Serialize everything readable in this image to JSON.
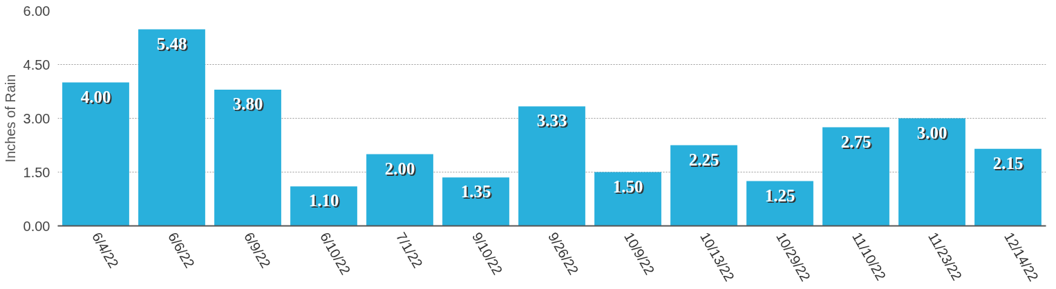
{
  "chart_data": {
    "type": "bar",
    "ylabel": "Inches of Rain",
    "categories": [
      "6/4/22",
      "6/6/22",
      "6/9/22",
      "6/10/22",
      "7/1/22",
      "9/10/22",
      "9/26/22",
      "10/9/22",
      "10/13/22",
      "10/29/22",
      "11/10/22",
      "11/23/22",
      "12/14/22"
    ],
    "values": [
      4.0,
      5.48,
      3.8,
      1.1,
      2.0,
      1.35,
      3.33,
      1.5,
      2.25,
      1.25,
      2.75,
      3.0,
      2.15
    ],
    "value_labels": [
      "4.00",
      "5.48",
      "3.80",
      "1.10",
      "2.00",
      "1.35",
      "3.33",
      "1.50",
      "2.25",
      "1.25",
      "2.75",
      "3.00",
      "2.15"
    ],
    "color": "#29b0dc",
    "ylim": [
      0,
      6
    ],
    "yticks": [
      {
        "value": 0,
        "label": "0.00"
      },
      {
        "value": 1.5,
        "label": "1.50"
      },
      {
        "value": 3,
        "label": "3.00"
      },
      {
        "value": 4.5,
        "label": "4.50"
      },
      {
        "value": 6,
        "label": "6.00"
      }
    ],
    "grid": "y"
  }
}
